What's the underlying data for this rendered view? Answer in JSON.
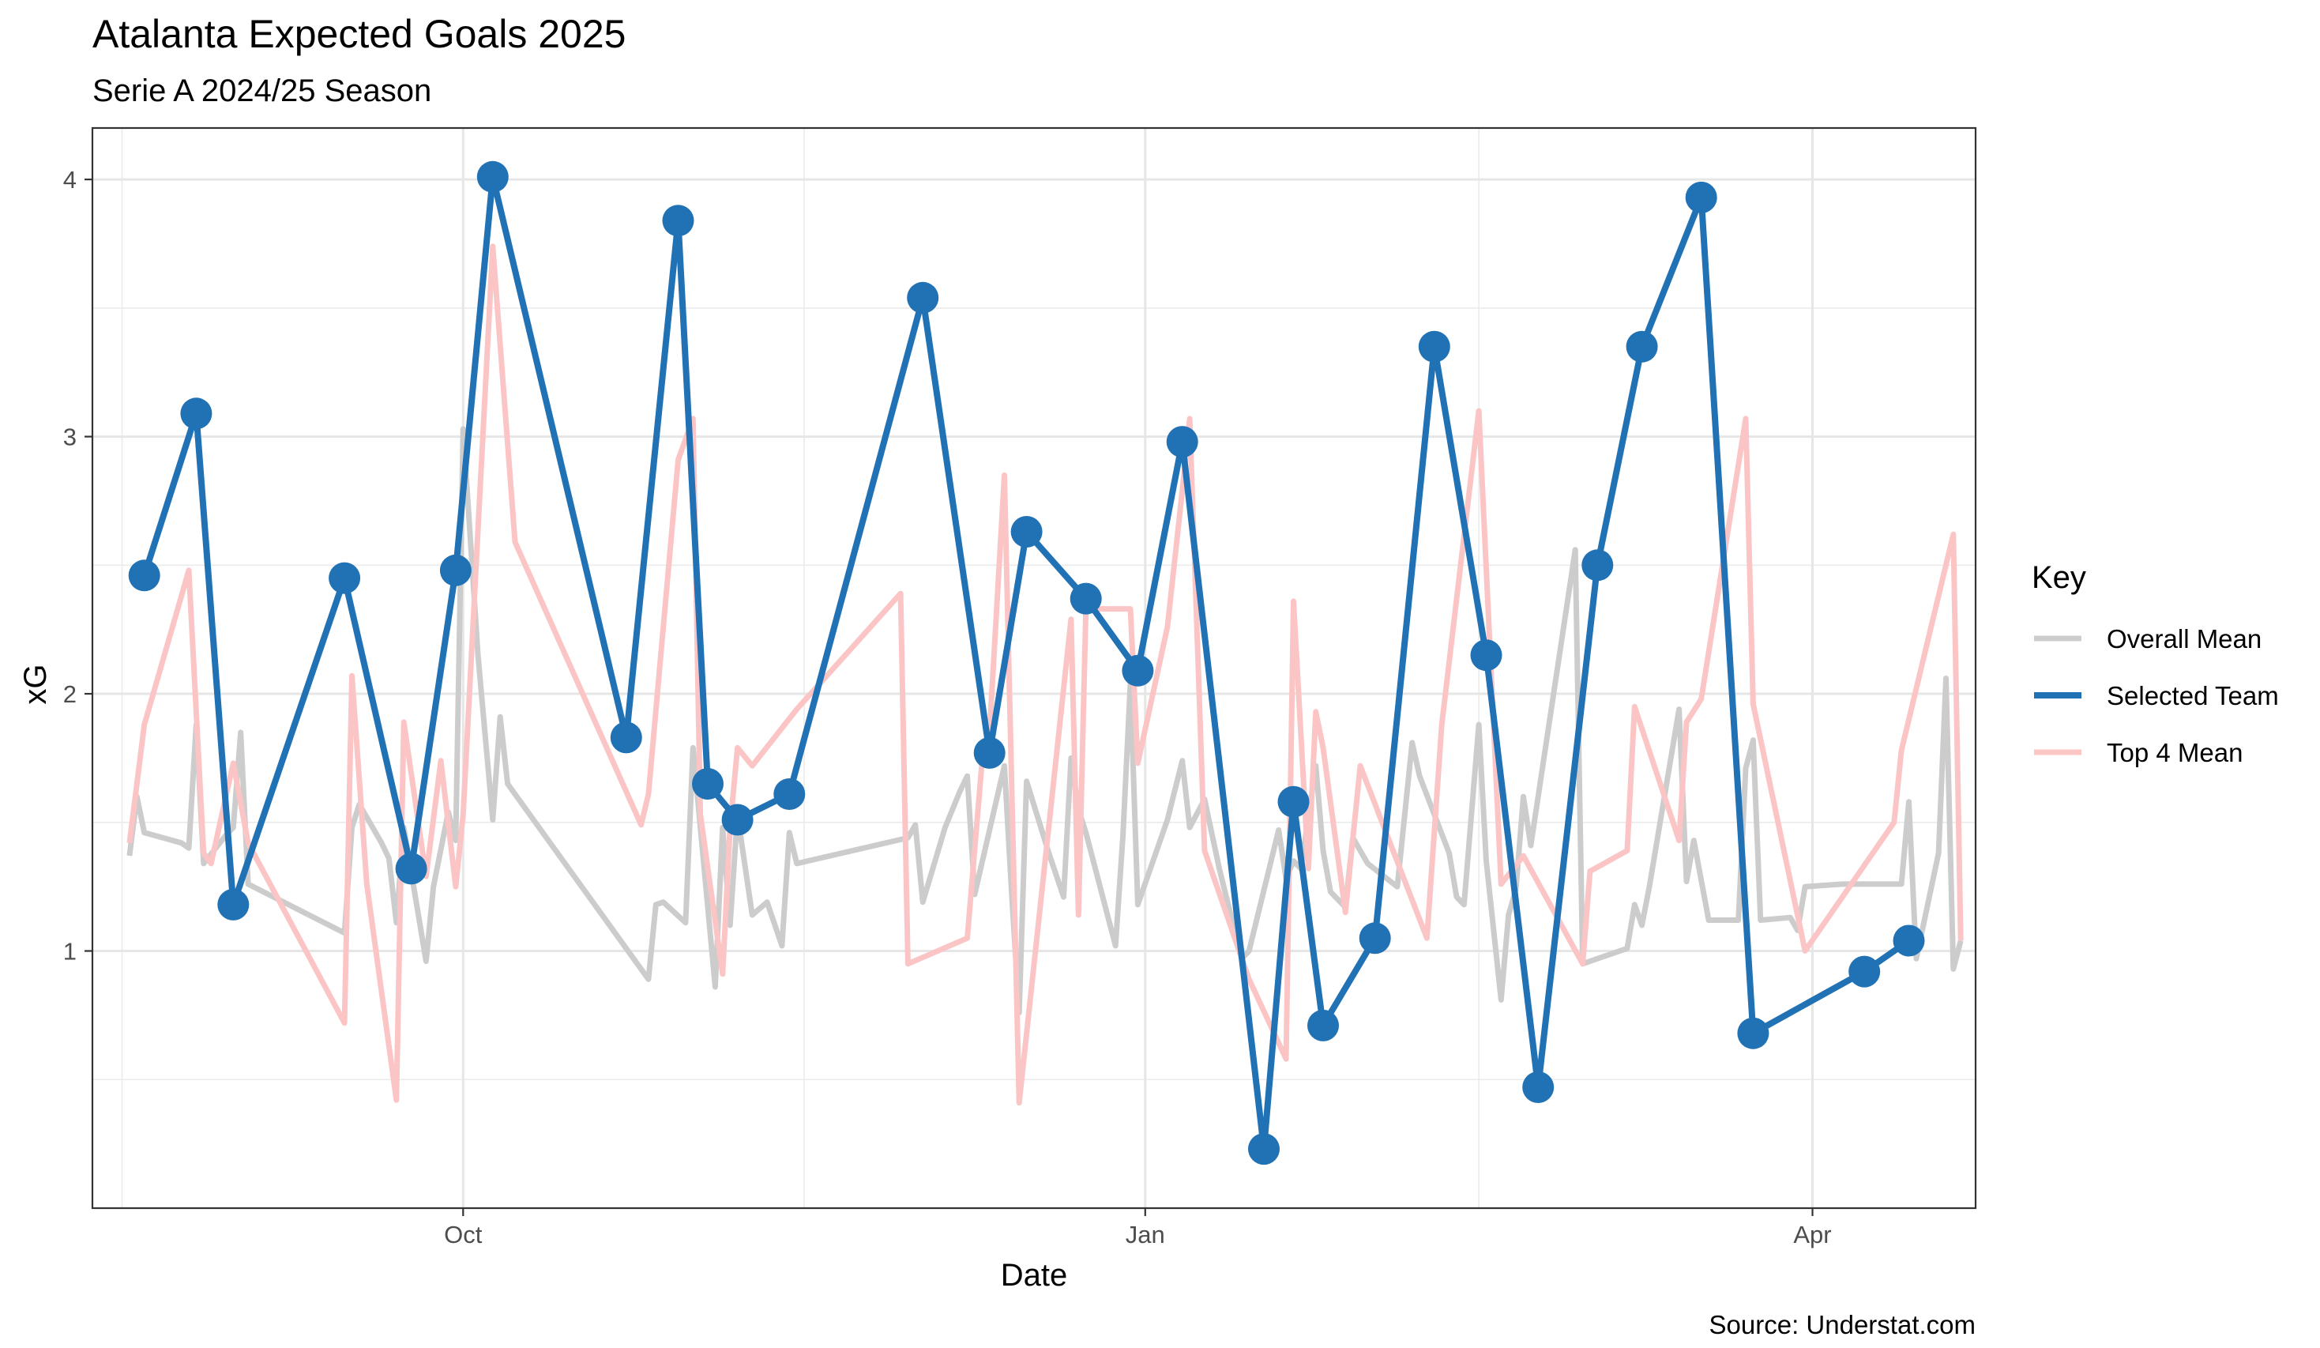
{
  "chart_data": {
    "type": "line",
    "title": "Atalanta Expected Goals 2025",
    "subtitle": "Serie A 2024/25 Season",
    "xlabel": "Date",
    "ylabel": "xG",
    "caption": "Source: Understat.com",
    "ylim": [
      0.0,
      4.2
    ],
    "xlim": [
      "2024-08-12",
      "2025-04-23"
    ],
    "x_ticks": [
      {
        "date": "2024-10-01",
        "label": "Oct"
      },
      {
        "date": "2025-01-01",
        "label": "Jan"
      },
      {
        "date": "2025-04-01",
        "label": "Apr"
      }
    ],
    "x_minor_ticks": [
      "2024-08-16",
      "2024-11-16",
      "2025-02-15"
    ],
    "y_ticks": [
      1,
      2,
      3,
      4
    ],
    "y_minor_ticks": [
      0.5,
      1.5,
      2.5,
      3.5
    ],
    "grid": true,
    "legend": {
      "title": "Key",
      "position": "right",
      "entries": [
        {
          "label": "Overall Mean",
          "color": "#cccccc"
        },
        {
          "label": "Selected Team",
          "color": "#2171b5"
        },
        {
          "label": "Top 4 Mean",
          "color": "#fcc5c5"
        }
      ]
    },
    "series": [
      {
        "name": "Overall Mean",
        "color": "#cccccc",
        "points": [
          [
            "2024-08-17",
            1.37
          ],
          [
            "2024-08-18",
            1.6
          ],
          [
            "2024-08-19",
            1.46
          ],
          [
            "2024-08-24",
            1.42
          ],
          [
            "2024-08-25",
            1.4
          ],
          [
            "2024-08-26",
            1.88
          ],
          [
            "2024-08-27",
            1.34
          ],
          [
            "2024-08-30",
            1.45
          ],
          [
            "2024-08-31",
            1.48
          ],
          [
            "2024-09-01",
            1.85
          ],
          [
            "2024-09-02",
            1.26
          ],
          [
            "2024-09-15",
            1.07
          ],
          [
            "2024-09-16",
            1.48
          ],
          [
            "2024-09-17",
            1.57
          ],
          [
            "2024-09-20",
            1.42
          ],
          [
            "2024-09-21",
            1.36
          ],
          [
            "2024-09-22",
            1.11
          ],
          [
            "2024-09-23",
            1.48
          ],
          [
            "2024-09-26",
            0.96
          ],
          [
            "2024-09-27",
            1.25
          ],
          [
            "2024-09-29",
            1.54
          ],
          [
            "2024-09-30",
            1.43
          ],
          [
            "2024-10-01",
            3.03
          ],
          [
            "2024-10-03",
            2.15
          ],
          [
            "2024-10-05",
            1.51
          ],
          [
            "2024-10-06",
            1.91
          ],
          [
            "2024-10-07",
            1.65
          ],
          [
            "2024-10-26",
            0.89
          ],
          [
            "2024-10-27",
            1.18
          ],
          [
            "2024-10-28",
            1.19
          ],
          [
            "2024-10-31",
            1.11
          ],
          [
            "2024-11-01",
            1.79
          ],
          [
            "2024-11-04",
            0.86
          ],
          [
            "2024-11-05",
            1.48
          ],
          [
            "2024-11-06",
            1.1
          ],
          [
            "2024-11-07",
            1.53
          ],
          [
            "2024-11-09",
            1.14
          ],
          [
            "2024-11-11",
            1.19
          ],
          [
            "2024-11-13",
            1.02
          ],
          [
            "2024-11-14",
            1.46
          ],
          [
            "2024-11-15",
            1.34
          ],
          [
            "2024-11-30",
            1.44
          ],
          [
            "2024-12-01",
            1.49
          ],
          [
            "2024-12-02",
            1.19
          ],
          [
            "2024-12-05",
            1.48
          ],
          [
            "2024-12-07",
            1.62
          ],
          [
            "2024-12-08",
            1.68
          ],
          [
            "2024-12-09",
            1.22
          ],
          [
            "2024-12-13",
            1.72
          ],
          [
            "2024-12-14",
            1.22
          ],
          [
            "2024-12-15",
            0.76
          ],
          [
            "2024-12-16",
            1.66
          ],
          [
            "2024-12-19",
            1.38
          ],
          [
            "2024-12-21",
            1.21
          ],
          [
            "2024-12-22",
            1.75
          ],
          [
            "2024-12-23",
            1.55
          ],
          [
            "2024-12-24",
            1.46
          ],
          [
            "2024-12-28",
            1.02
          ],
          [
            "2024-12-29",
            1.45
          ],
          [
            "2024-12-30",
            2.04
          ],
          [
            "2024-12-31",
            1.18
          ],
          [
            "2025-01-04",
            1.51
          ],
          [
            "2025-01-06",
            1.74
          ],
          [
            "2025-01-07",
            1.48
          ],
          [
            "2025-01-09",
            1.59
          ],
          [
            "2025-01-11",
            1.32
          ],
          [
            "2025-01-14",
            0.97
          ],
          [
            "2025-01-15",
            1.0
          ],
          [
            "2025-01-19",
            1.47
          ],
          [
            "2025-01-20",
            1.28
          ],
          [
            "2025-01-21",
            1.35
          ],
          [
            "2025-01-22",
            1.32
          ],
          [
            "2025-01-24",
            1.72
          ],
          [
            "2025-01-25",
            1.39
          ],
          [
            "2025-01-26",
            1.23
          ],
          [
            "2025-01-28",
            1.17
          ],
          [
            "2025-01-29",
            1.44
          ],
          [
            "2025-01-31",
            1.34
          ],
          [
            "2025-02-04",
            1.25
          ],
          [
            "2025-02-06",
            1.81
          ],
          [
            "2025-02-07",
            1.68
          ],
          [
            "2025-02-11",
            1.38
          ],
          [
            "2025-02-12",
            1.21
          ],
          [
            "2025-02-13",
            1.18
          ],
          [
            "2025-02-15",
            1.88
          ],
          [
            "2025-02-16",
            1.35
          ],
          [
            "2025-02-18",
            0.81
          ],
          [
            "2025-02-19",
            1.14
          ],
          [
            "2025-02-20",
            1.24
          ],
          [
            "2025-02-21",
            1.6
          ],
          [
            "2025-02-22",
            1.41
          ],
          [
            "2025-02-28",
            2.56
          ],
          [
            "2025-03-01",
            0.95
          ],
          [
            "2025-03-02",
            0.96
          ],
          [
            "2025-03-07",
            1.01
          ],
          [
            "2025-03-08",
            1.18
          ],
          [
            "2025-03-09",
            1.1
          ],
          [
            "2025-03-10",
            1.25
          ],
          [
            "2025-03-14",
            1.94
          ],
          [
            "2025-03-15",
            1.27
          ],
          [
            "2025-03-16",
            1.43
          ],
          [
            "2025-03-18",
            1.12
          ],
          [
            "2025-03-22",
            1.12
          ],
          [
            "2025-03-23",
            1.71
          ],
          [
            "2025-03-24",
            1.82
          ],
          [
            "2025-03-25",
            1.12
          ],
          [
            "2025-03-29",
            1.13
          ],
          [
            "2025-03-30",
            1.08
          ],
          [
            "2025-03-31",
            1.25
          ],
          [
            "2025-04-05",
            1.26
          ],
          [
            "2025-04-13",
            1.26
          ],
          [
            "2025-04-14",
            1.58
          ],
          [
            "2025-04-15",
            0.97
          ],
          [
            "2025-04-18",
            1.38
          ],
          [
            "2025-04-19",
            2.06
          ],
          [
            "2025-04-20",
            0.93
          ],
          [
            "2025-04-21",
            1.04
          ]
        ]
      },
      {
        "name": "Top 4 Mean",
        "color": "#fcc5c5",
        "points": [
          [
            "2024-08-17",
            1.42
          ],
          [
            "2024-08-19",
            1.88
          ],
          [
            "2024-08-25",
            2.48
          ],
          [
            "2024-08-27",
            1.38
          ],
          [
            "2024-08-28",
            1.34
          ],
          [
            "2024-08-31",
            1.73
          ],
          [
            "2024-09-02",
            1.42
          ],
          [
            "2024-09-15",
            0.72
          ],
          [
            "2024-09-16",
            2.07
          ],
          [
            "2024-09-18",
            1.26
          ],
          [
            "2024-09-22",
            0.42
          ],
          [
            "2024-09-23",
            1.89
          ],
          [
            "2024-09-26",
            1.29
          ],
          [
            "2024-09-28",
            1.74
          ],
          [
            "2024-09-30",
            1.25
          ],
          [
            "2024-10-01",
            1.53
          ],
          [
            "2024-10-05",
            3.74
          ],
          [
            "2024-10-08",
            2.59
          ],
          [
            "2024-10-25",
            1.49
          ],
          [
            "2024-10-26",
            1.61
          ],
          [
            "2024-10-30",
            2.91
          ],
          [
            "2024-11-01",
            3.07
          ],
          [
            "2024-11-02",
            1.53
          ],
          [
            "2024-11-05",
            0.91
          ],
          [
            "2024-11-06",
            1.48
          ],
          [
            "2024-11-07",
            1.79
          ],
          [
            "2024-11-09",
            1.72
          ],
          [
            "2024-11-15",
            1.94
          ],
          [
            "2024-11-29",
            2.39
          ],
          [
            "2024-11-30",
            0.95
          ],
          [
            "2024-12-08",
            1.05
          ],
          [
            "2024-12-10",
            1.74
          ],
          [
            "2024-12-11",
            1.85
          ],
          [
            "2024-12-13",
            2.85
          ],
          [
            "2024-12-15",
            0.41
          ],
          [
            "2024-12-22",
            2.29
          ],
          [
            "2024-12-23",
            1.14
          ],
          [
            "2024-12-24",
            2.33
          ],
          [
            "2024-12-30",
            2.33
          ],
          [
            "2024-12-31",
            1.73
          ],
          [
            "2025-01-04",
            2.26
          ],
          [
            "2025-01-06",
            2.79
          ],
          [
            "2025-01-07",
            3.07
          ],
          [
            "2025-01-09",
            1.39
          ],
          [
            "2025-01-15",
            0.89
          ],
          [
            "2025-01-20",
            0.58
          ],
          [
            "2025-01-21",
            2.36
          ],
          [
            "2025-01-23",
            1.32
          ],
          [
            "2025-01-24",
            1.93
          ],
          [
            "2025-01-25",
            1.79
          ],
          [
            "2025-01-28",
            1.15
          ],
          [
            "2025-01-30",
            1.72
          ],
          [
            "2025-02-08",
            1.05
          ],
          [
            "2025-02-10",
            1.88
          ],
          [
            "2025-02-15",
            3.1
          ],
          [
            "2025-02-18",
            1.26
          ],
          [
            "2025-02-21",
            1.37
          ],
          [
            "2025-03-01",
            0.95
          ],
          [
            "2025-03-02",
            1.31
          ],
          [
            "2025-03-07",
            1.39
          ],
          [
            "2025-03-08",
            1.95
          ],
          [
            "2025-03-14",
            1.43
          ],
          [
            "2025-03-15",
            1.89
          ],
          [
            "2025-03-17",
            1.98
          ],
          [
            "2025-03-23",
            3.07
          ],
          [
            "2025-03-24",
            1.96
          ],
          [
            "2025-03-31",
            1.0
          ],
          [
            "2025-04-12",
            1.5
          ],
          [
            "2025-04-13",
            1.78
          ],
          [
            "2025-04-20",
            2.62
          ],
          [
            "2025-04-21",
            1.04
          ]
        ]
      },
      {
        "name": "Selected Team",
        "color": "#2171b5",
        "points": [
          [
            "2024-08-19",
            2.46
          ],
          [
            "2024-08-26",
            3.09
          ],
          [
            "2024-08-31",
            1.18
          ],
          [
            "2024-09-15",
            2.45
          ],
          [
            "2024-09-24",
            1.32
          ],
          [
            "2024-09-30",
            2.48
          ],
          [
            "2024-10-05",
            4.01
          ],
          [
            "2024-10-23",
            1.83
          ],
          [
            "2024-10-30",
            3.84
          ],
          [
            "2024-11-03",
            1.65
          ],
          [
            "2024-11-07",
            1.51
          ],
          [
            "2024-11-14",
            1.61
          ],
          [
            "2024-12-02",
            3.54
          ],
          [
            "2024-12-11",
            1.77
          ],
          [
            "2024-12-16",
            2.63
          ],
          [
            "2024-12-24",
            2.37
          ],
          [
            "2024-12-31",
            2.09
          ],
          [
            "2025-01-06",
            2.98
          ],
          [
            "2025-01-17",
            0.23
          ],
          [
            "2025-01-21",
            1.58
          ],
          [
            "2025-01-25",
            0.71
          ],
          [
            "2025-02-01",
            1.05
          ],
          [
            "2025-02-09",
            3.35
          ],
          [
            "2025-02-16",
            2.15
          ],
          [
            "2025-02-23",
            0.47
          ],
          [
            "2025-03-03",
            2.5
          ],
          [
            "2025-03-09",
            3.35
          ],
          [
            "2025-03-17",
            3.93
          ],
          [
            "2025-03-24",
            0.68
          ],
          [
            "2025-04-08",
            0.92
          ],
          [
            "2025-04-14",
            1.04
          ]
        ]
      }
    ]
  }
}
